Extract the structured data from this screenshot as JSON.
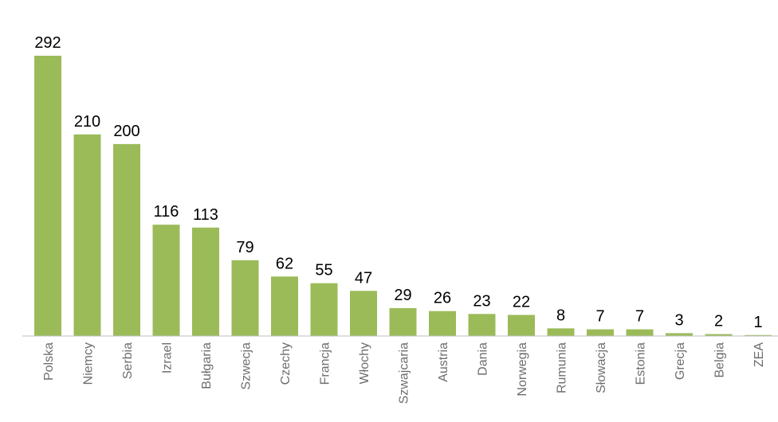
{
  "chart_data": {
    "type": "bar",
    "categories": [
      "Polska",
      "Niemcy",
      "Serbia",
      "Izrael",
      "Bułgaria",
      "Szwecja",
      "Czechy",
      "Francja",
      "Włochy",
      "Szwajcaria",
      "Austria",
      "Dania",
      "Norwegia",
      "Rumunia",
      "Słowacja",
      "Estonia",
      "Grecja",
      "Belgia",
      "ZEA"
    ],
    "values": [
      292,
      210,
      200,
      116,
      113,
      79,
      62,
      55,
      47,
      29,
      26,
      23,
      22,
      8,
      7,
      7,
      3,
      2,
      1
    ],
    "title": "",
    "xlabel": "",
    "ylabel": "",
    "ylim": [
      0,
      292
    ],
    "grid": false,
    "legend": "none",
    "bar_color": "#9bbb59",
    "axis_color": "#bfbfbf"
  }
}
